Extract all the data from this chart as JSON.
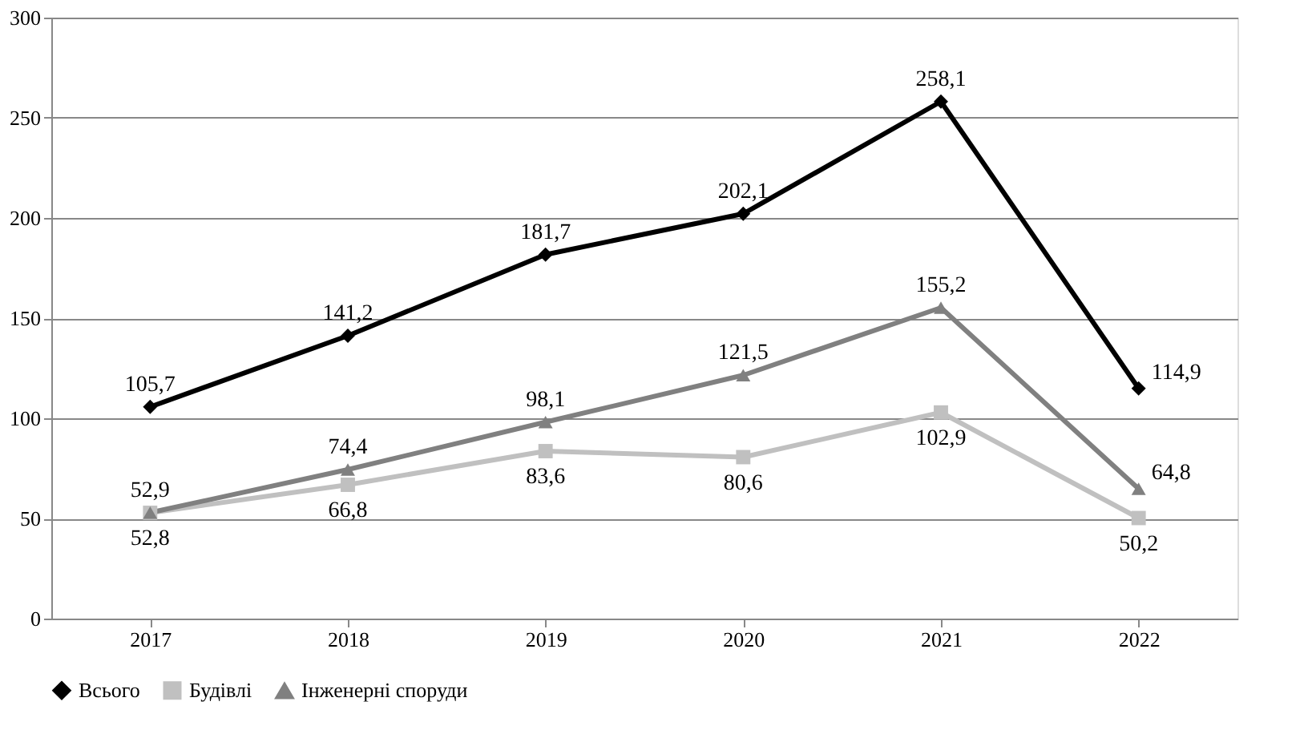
{
  "chart_data": {
    "type": "line",
    "categories": [
      "2017",
      "2018",
      "2019",
      "2020",
      "2021",
      "2022"
    ],
    "series": [
      {
        "name": "Всього",
        "color": "#000000",
        "marker": "diamond",
        "values": [
          105.7,
          141.2,
          181.7,
          202.1,
          258.1,
          114.9
        ],
        "value_labels": [
          "105,7",
          "141,2",
          "181,7",
          "202,1",
          "258,1",
          "114,9"
        ]
      },
      {
        "name": "Будівлі",
        "color": "#c0c0c0",
        "marker": "square",
        "values": [
          52.8,
          66.8,
          83.6,
          80.6,
          102.9,
          50.2
        ],
        "value_labels": [
          "52,8",
          "66,8",
          "83,6",
          "80,6",
          "102,9",
          "50,2"
        ]
      },
      {
        "name": "Інженерні споруди",
        "color": "#808080",
        "marker": "triangle",
        "values": [
          52.9,
          74.4,
          98.1,
          121.5,
          155.2,
          64.8
        ],
        "value_labels": [
          "52,9",
          "74,4",
          "98,1",
          "121,5",
          "155,2",
          "64,8"
        ]
      }
    ],
    "ylim": [
      0,
      300
    ],
    "yticks": [
      0,
      50,
      100,
      150,
      200,
      250,
      300
    ],
    "grid": "y",
    "legend": "bottom",
    "line_style": "solid"
  }
}
